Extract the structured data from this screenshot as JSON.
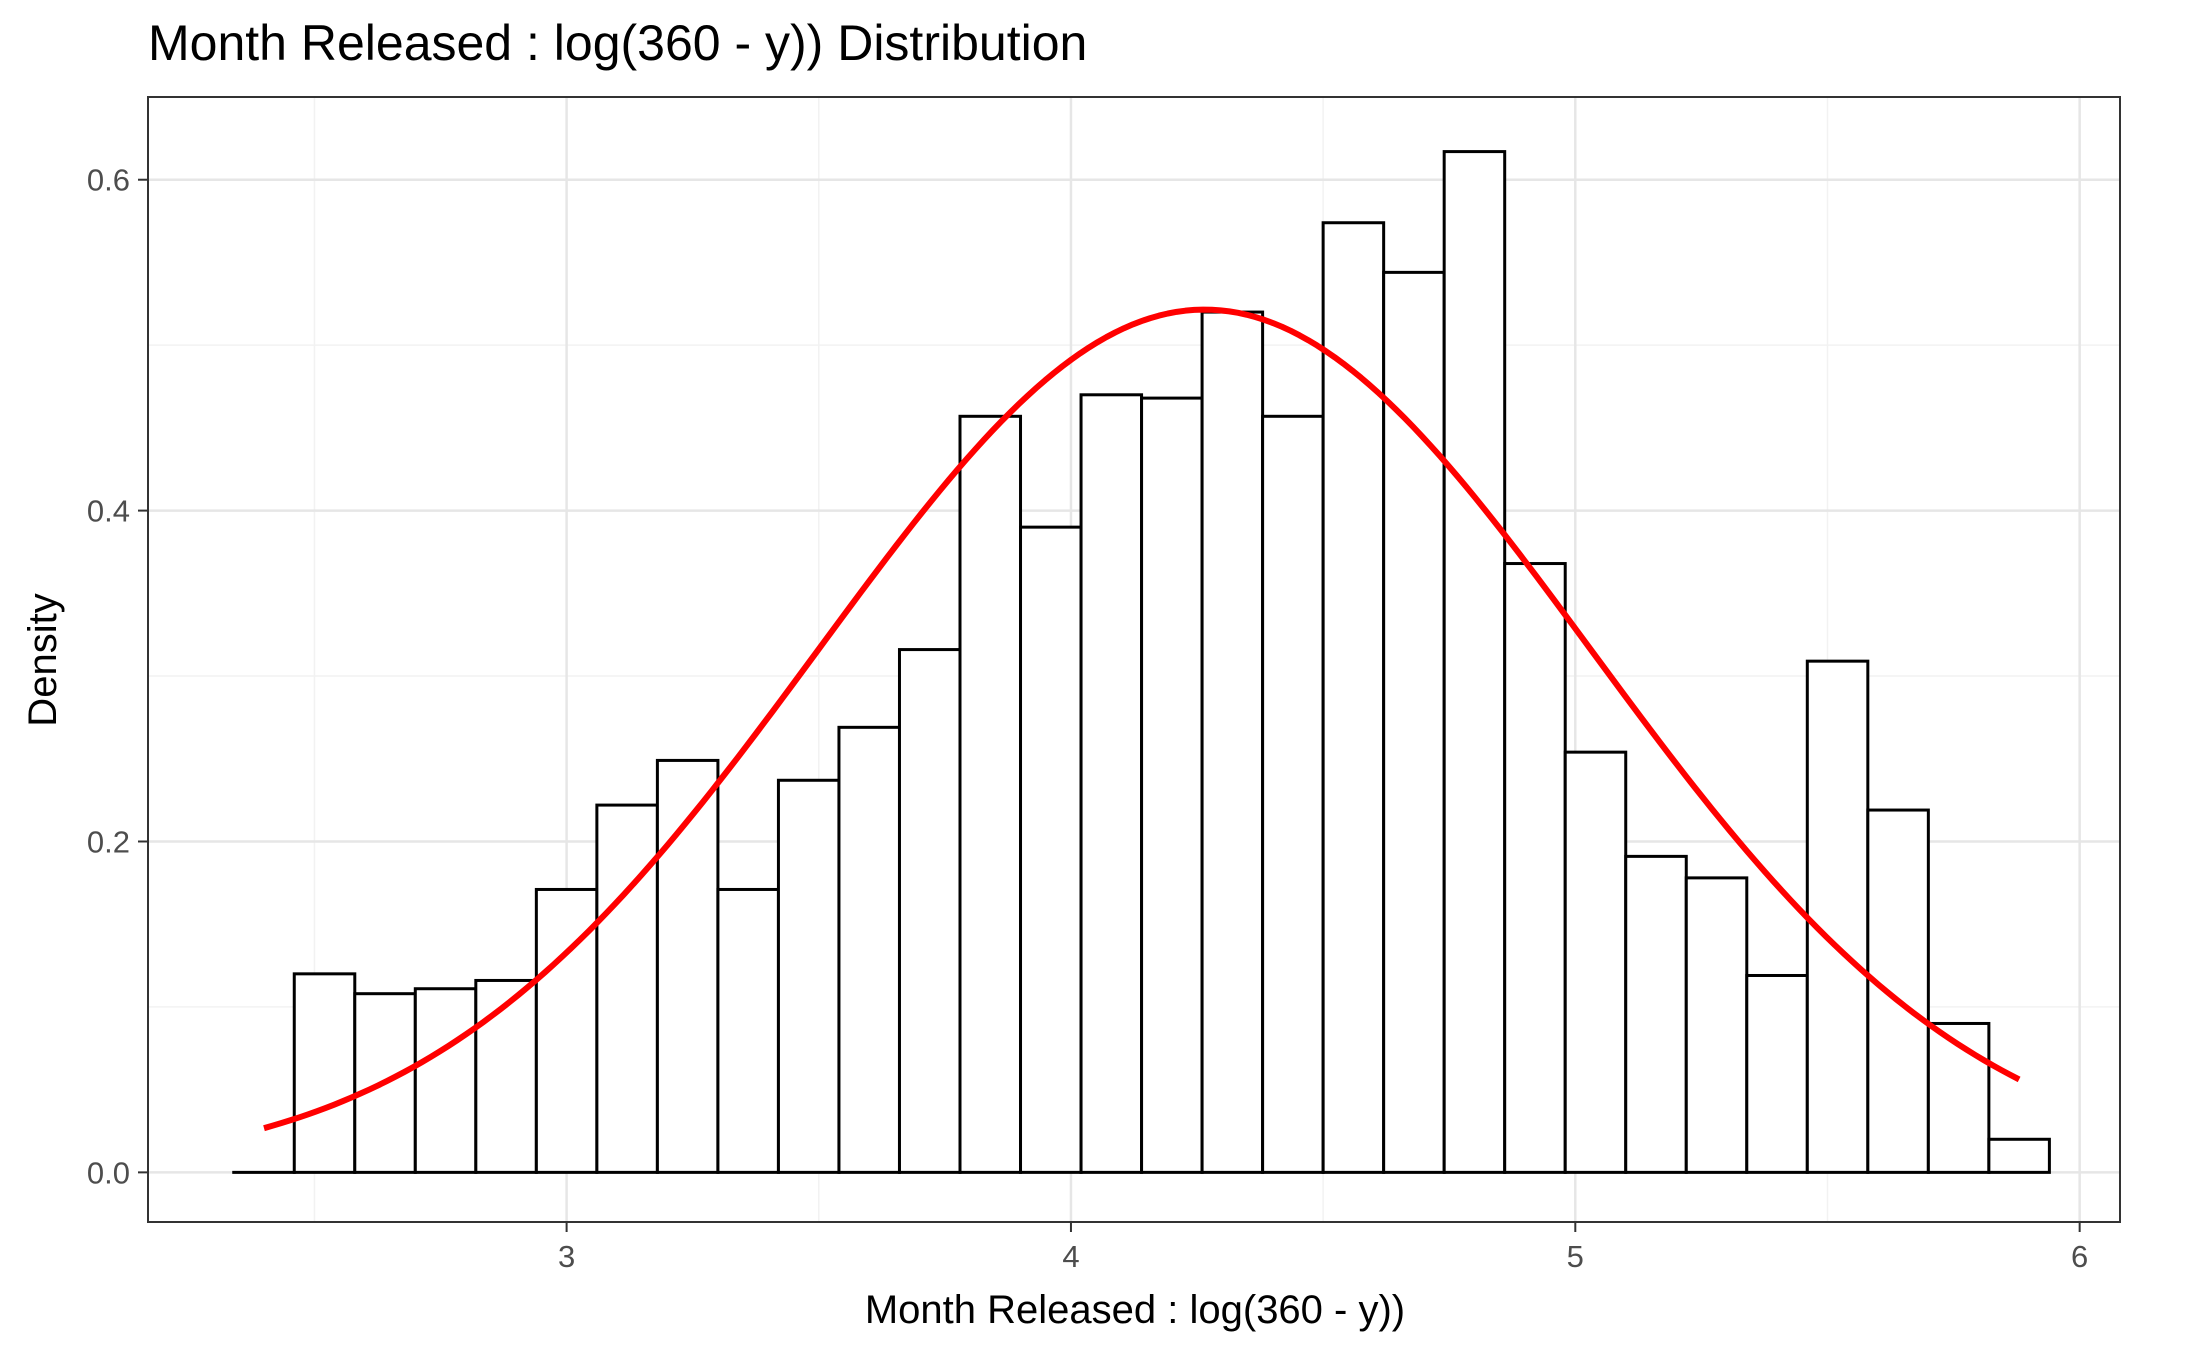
{
  "chart_data": {
    "type": "bar",
    "title": "Month Released : log(360 - y)) Distribution",
    "xlabel": "Month Released : log(360 - y))",
    "ylabel": "Density",
    "xlim": [
      2.17,
      6.08
    ],
    "ylim": [
      -0.03,
      0.65
    ],
    "x_ticks": [
      3,
      4,
      5,
      6
    ],
    "x_tick_labels": [
      "3",
      "4",
      "5",
      "6"
    ],
    "y_ticks": [
      0.0,
      0.2,
      0.4,
      0.6
    ],
    "y_tick_labels": [
      "0.0",
      "0.2",
      "0.4",
      "0.6"
    ],
    "grid": true,
    "bin_width": 0.12,
    "bins": [
      {
        "x0": 2.34,
        "x1": 2.46,
        "density": 0.0
      },
      {
        "x0": 2.46,
        "x1": 2.58,
        "density": 0.12
      },
      {
        "x0": 2.58,
        "x1": 2.7,
        "density": 0.108
      },
      {
        "x0": 2.7,
        "x1": 2.82,
        "density": 0.111
      },
      {
        "x0": 2.82,
        "x1": 2.94,
        "density": 0.116
      },
      {
        "x0": 2.94,
        "x1": 3.06,
        "density": 0.171
      },
      {
        "x0": 3.06,
        "x1": 3.18,
        "density": 0.222
      },
      {
        "x0": 3.18,
        "x1": 3.3,
        "density": 0.249
      },
      {
        "x0": 3.3,
        "x1": 3.42,
        "density": 0.171
      },
      {
        "x0": 3.42,
        "x1": 3.54,
        "density": 0.237
      },
      {
        "x0": 3.54,
        "x1": 3.66,
        "density": 0.269
      },
      {
        "x0": 3.66,
        "x1": 3.78,
        "density": 0.316
      },
      {
        "x0": 3.78,
        "x1": 3.9,
        "density": 0.457
      },
      {
        "x0": 3.9,
        "x1": 4.02,
        "density": 0.39
      },
      {
        "x0": 4.02,
        "x1": 4.14,
        "density": 0.47
      },
      {
        "x0": 4.14,
        "x1": 4.26,
        "density": 0.468
      },
      {
        "x0": 4.26,
        "x1": 4.38,
        "density": 0.52
      },
      {
        "x0": 4.38,
        "x1": 4.5,
        "density": 0.457
      },
      {
        "x0": 4.5,
        "x1": 4.62,
        "density": 0.574
      },
      {
        "x0": 4.62,
        "x1": 4.74,
        "density": 0.544
      },
      {
        "x0": 4.74,
        "x1": 4.86,
        "density": 0.617
      },
      {
        "x0": 4.86,
        "x1": 4.98,
        "density": 0.368
      },
      {
        "x0": 4.98,
        "x1": 5.1,
        "density": 0.254
      },
      {
        "x0": 5.1,
        "x1": 5.22,
        "density": 0.191
      },
      {
        "x0": 5.22,
        "x1": 5.34,
        "density": 0.178
      },
      {
        "x0": 5.34,
        "x1": 5.46,
        "density": 0.119
      },
      {
        "x0": 5.46,
        "x1": 5.58,
        "density": 0.309
      },
      {
        "x0": 5.58,
        "x1": 5.7,
        "density": 0.219
      },
      {
        "x0": 5.7,
        "x1": 5.82,
        "density": 0.09
      },
      {
        "x0": 5.82,
        "x1": 5.94,
        "density": 0.02
      }
    ],
    "series": [
      {
        "type": "line",
        "kind": "normal-density-fit",
        "color": "#ff0000",
        "mean": 4.265,
        "sd": 0.765,
        "x_range": [
          2.4,
          5.88
        ]
      }
    ],
    "colors": {
      "bar_fill": "#ffffff",
      "bar_stroke": "#000000",
      "curve": "#ff0000",
      "grid_major": "#e6e6e6",
      "grid_minor": "#f2f2f2",
      "panel_border": "#333333",
      "tick_text": "#4d4d4d"
    }
  }
}
